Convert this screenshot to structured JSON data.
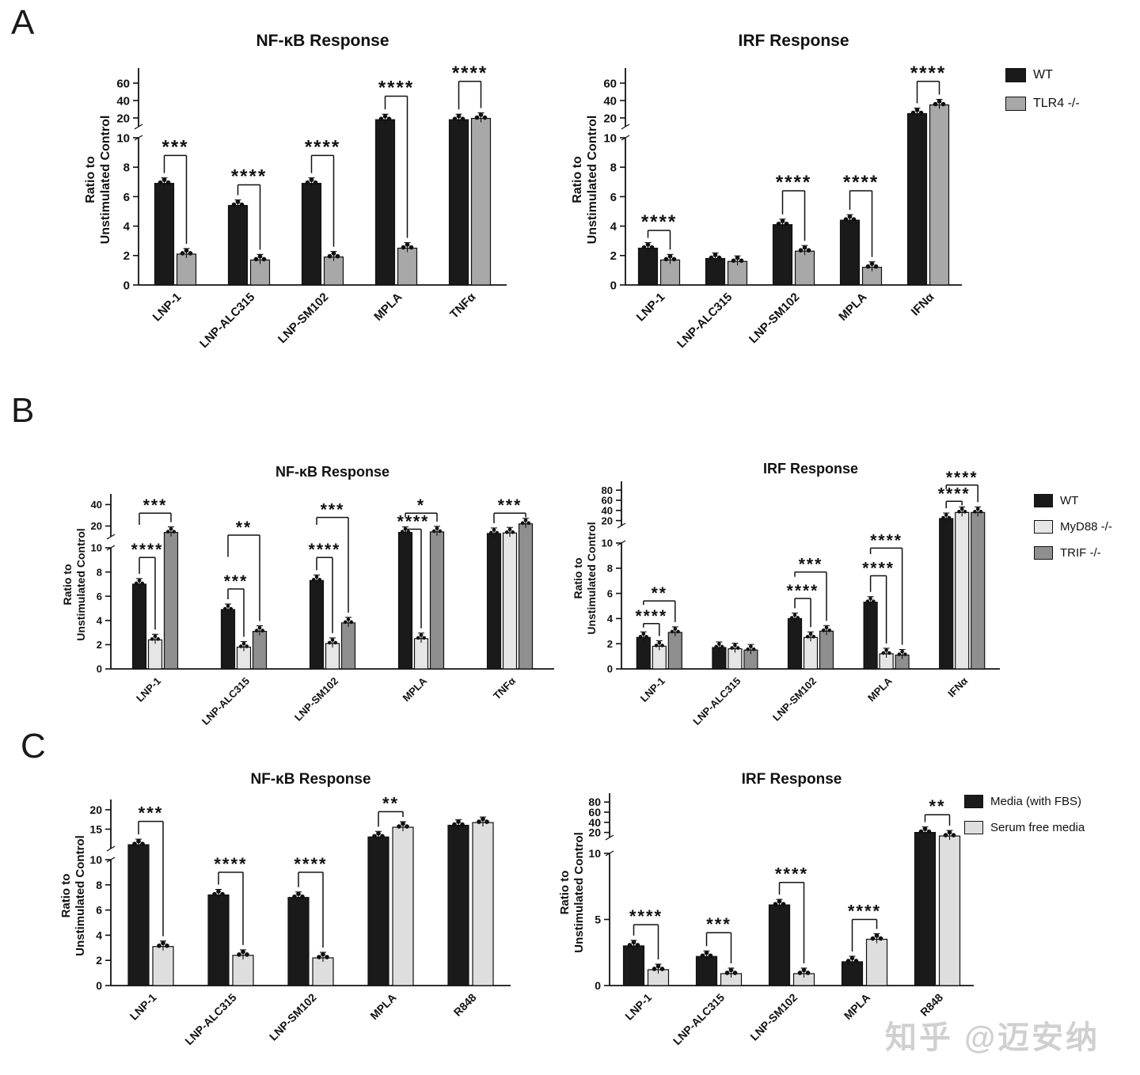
{
  "watermark": "知乎 @迈安纳",
  "panels": [
    {
      "label": "A",
      "legend": [
        {
          "label": "WT",
          "color": "#1a1a1a"
        },
        {
          "label": "TLR4 -/-",
          "color": "#a8a8a8"
        }
      ]
    },
    {
      "label": "B",
      "legend": [
        {
          "label": "WT",
          "color": "#1a1a1a"
        },
        {
          "label": "MyD88 -/-",
          "color": "#e6e6e6"
        },
        {
          "label": "TRIF -/-",
          "color": "#8f8f8f"
        }
      ]
    },
    {
      "label": "C",
      "legend": [
        {
          "label": "Media (with FBS)",
          "color": "#1a1a1a"
        },
        {
          "label": "Serum free media",
          "color": "#dedede"
        }
      ]
    }
  ],
  "chart_data": [
    {
      "panel": "A",
      "type": "bar",
      "title": "NF-κB Response",
      "ylabel": "Ratio to Unstimulated Control",
      "ylabel_lines": [
        "Ratio to",
        "Unstimulated  Control"
      ],
      "categories": [
        "LNP-1",
        "LNP-ALC315",
        "LNP-SM102",
        "MPLA",
        "TNFα"
      ],
      "series": [
        {
          "name": "WT",
          "color": "#1a1a1a",
          "values": [
            6.9,
            5.4,
            6.9,
            18,
            18
          ]
        },
        {
          "name": "TLR4 -/-",
          "color": "#a8a8a8",
          "values": [
            2.1,
            1.7,
            1.9,
            2.5,
            19.5
          ]
        }
      ],
      "axis": {
        "lower_ticks": [
          0,
          2,
          4,
          6,
          8,
          10
        ],
        "lower_max": 10,
        "upper_ticks": [
          20,
          40,
          60
        ],
        "upper_max": 70
      },
      "significance": [
        {
          "cat": 0,
          "s1": 0,
          "s2": 1,
          "label": "***",
          "y": 8.8
        },
        {
          "cat": 1,
          "s1": 0,
          "s2": 1,
          "label": "****",
          "y": 6.8
        },
        {
          "cat": 2,
          "s1": 0,
          "s2": 1,
          "label": "****",
          "y": 8.8
        },
        {
          "cat": 3,
          "s1": 0,
          "s2": 1,
          "label": "****",
          "y": 45
        },
        {
          "cat": 4,
          "s1": 0,
          "s2": 1,
          "label": "****",
          "y": 62
        }
      ]
    },
    {
      "panel": "A",
      "type": "bar",
      "title": "IRF Response",
      "ylabel": "Ratio to Unstimulated Control",
      "ylabel_lines": [
        "Ratio to",
        "Unstimulated  Control"
      ],
      "categories": [
        "LNP-1",
        "LNP-ALC315",
        "LNP-SM102",
        "MPLA",
        "IFNα"
      ],
      "series": [
        {
          "name": "WT",
          "color": "#1a1a1a",
          "values": [
            2.5,
            1.8,
            4.1,
            4.4,
            25
          ]
        },
        {
          "name": "TLR4 -/-",
          "color": "#a8a8a8",
          "values": [
            1.7,
            1.6,
            2.3,
            1.2,
            35
          ]
        }
      ],
      "axis": {
        "lower_ticks": [
          0,
          2,
          4,
          6,
          8,
          10
        ],
        "lower_max": 10,
        "upper_ticks": [
          20,
          40,
          60
        ],
        "upper_max": 70
      },
      "significance": [
        {
          "cat": 0,
          "s1": 0,
          "s2": 1,
          "label": "****",
          "y": 3.7
        },
        {
          "cat": 2,
          "s1": 0,
          "s2": 1,
          "label": "****",
          "y": 6.4
        },
        {
          "cat": 3,
          "s1": 0,
          "s2": 1,
          "label": "****",
          "y": 6.4
        },
        {
          "cat": 4,
          "s1": 0,
          "s2": 1,
          "label": "****",
          "y": 62
        }
      ]
    },
    {
      "panel": "B",
      "type": "bar",
      "title": "NF-κB Response",
      "ylabel": "Ratio to Unstimulated Control",
      "ylabel_lines": [
        "Ratio to",
        "Unstimulated  Control"
      ],
      "categories": [
        "LNP-1",
        "LNP-ALC315",
        "LNP-SM102",
        "MPLA",
        "TNFα"
      ],
      "series": [
        {
          "name": "WT",
          "color": "#1a1a1a",
          "values": [
            7.0,
            4.9,
            7.3,
            14,
            13
          ]
        },
        {
          "name": "MyD88 -/-",
          "color": "#e6e6e6",
          "values": [
            2.4,
            1.8,
            2.1,
            2.5,
            13.5
          ]
        },
        {
          "name": "TRIF -/-",
          "color": "#8f8f8f",
          "values": [
            14,
            3.1,
            3.8,
            14.5,
            22
          ]
        }
      ],
      "axis": {
        "lower_ticks": [
          0,
          2,
          4,
          6,
          8,
          10
        ],
        "lower_max": 10,
        "upper_ticks": [
          20,
          40
        ],
        "upper_max": 44
      },
      "significance": [
        {
          "cat": 0,
          "s1": 0,
          "s2": 1,
          "label": "****",
          "y": 9.2
        },
        {
          "cat": 0,
          "s1": 0,
          "s2": 2,
          "label": "***",
          "y": 32,
          "d1": 11.5
        },
        {
          "cat": 1,
          "s1": 0,
          "s2": 1,
          "label": "***",
          "y": 6.6
        },
        {
          "cat": 1,
          "s1": 0,
          "s2": 2,
          "label": "**",
          "y": 11.5,
          "d1": 8.4
        },
        {
          "cat": 2,
          "s1": 0,
          "s2": 1,
          "label": "****",
          "y": 9.2
        },
        {
          "cat": 2,
          "s1": 0,
          "s2": 2,
          "label": "***",
          "y": 28,
          "d1": 11.5
        },
        {
          "cat": 3,
          "s1": 0,
          "s2": 1,
          "label": "****",
          "y": 17
        },
        {
          "cat": 3,
          "s1": 0,
          "s2": 2,
          "label": "*",
          "y": 32,
          "d1": 20
        },
        {
          "cat": 4,
          "s1": 0,
          "s2": 2,
          "label": "***",
          "y": 32
        }
      ]
    },
    {
      "panel": "B",
      "type": "bar",
      "title": "IRF  Response",
      "ylabel": "Ratio to Unstimulated Control",
      "ylabel_lines": [
        "Ratio to",
        "Unstimulated  Control"
      ],
      "categories": [
        "LNP-1",
        "LNP-ALC315",
        "LNP-SM102",
        "MPLA",
        "IFNα"
      ],
      "series": [
        {
          "name": "WT",
          "color": "#1a1a1a",
          "values": [
            2.5,
            1.7,
            4.0,
            5.3,
            24
          ]
        },
        {
          "name": "MyD88 -/-",
          "color": "#e6e6e6",
          "values": [
            1.8,
            1.6,
            2.5,
            1.2,
            36
          ]
        },
        {
          "name": "TRIF -/-",
          "color": "#8f8f8f",
          "values": [
            2.9,
            1.5,
            3.0,
            1.1,
            36
          ]
        }
      ],
      "axis": {
        "lower_ticks": [
          0,
          2,
          4,
          6,
          8,
          10
        ],
        "lower_max": 10,
        "upper_ticks": [
          20,
          40,
          60,
          80
        ],
        "upper_max": 85
      },
      "significance": [
        {
          "cat": 0,
          "s1": 0,
          "s2": 1,
          "label": "****",
          "y": 3.6
        },
        {
          "cat": 0,
          "s1": 0,
          "s2": 2,
          "label": "**",
          "y": 5.4,
          "d1": 4.4
        },
        {
          "cat": 2,
          "s1": 0,
          "s2": 1,
          "label": "****",
          "y": 5.6
        },
        {
          "cat": 2,
          "s1": 0,
          "s2": 2,
          "label": "***",
          "y": 7.7,
          "d1": 6.5
        },
        {
          "cat": 3,
          "s1": 0,
          "s2": 1,
          "label": "****",
          "y": 7.4
        },
        {
          "cat": 3,
          "s1": 0,
          "s2": 2,
          "label": "****",
          "y": 9.6,
          "d1": 8.3
        },
        {
          "cat": 4,
          "s1": 0,
          "s2": 1,
          "label": "****",
          "y": 58
        },
        {
          "cat": 4,
          "s1": 0,
          "s2": 2,
          "label": "****",
          "y": 90,
          "d1": 80
        }
      ]
    },
    {
      "panel": "C",
      "type": "bar",
      "title": "NF-κB Response",
      "ylabel": "Ratio to Unstimulated Control",
      "ylabel_lines": [
        "Ratio to",
        "Unstimulated  Control"
      ],
      "categories": [
        "LNP-1",
        "LNP-ALC315",
        "LNP-SM102",
        "MPLA",
        "R848"
      ],
      "series": [
        {
          "name": "Media (with FBS)",
          "color": "#1a1a1a",
          "values": [
            11,
            7.2,
            7.0,
            13,
            16
          ]
        },
        {
          "name": "Serum free media",
          "color": "#dedede",
          "values": [
            3.1,
            2.4,
            2.2,
            15.5,
            16.7
          ]
        }
      ],
      "axis": {
        "lower_ticks": [
          0,
          2,
          4,
          6,
          8,
          10
        ],
        "lower_max": 10,
        "upper_ticks": [
          15,
          20
        ],
        "upper_max": 21
      },
      "significance": [
        {
          "cat": 0,
          "s1": 0,
          "s2": 1,
          "label": "***",
          "y": 17
        },
        {
          "cat": 1,
          "s1": 0,
          "s2": 1,
          "label": "****",
          "y": 9.0
        },
        {
          "cat": 2,
          "s1": 0,
          "s2": 1,
          "label": "****",
          "y": 9.0
        },
        {
          "cat": 3,
          "s1": 0,
          "s2": 1,
          "label": "**",
          "y": 19.5
        }
      ]
    },
    {
      "panel": "C",
      "type": "bar",
      "title": "IRF  Response",
      "ylabel": "Ratio to Unstimulated Control",
      "ylabel_lines": [
        "Ratio to",
        "Unstimulated  Control"
      ],
      "categories": [
        "LNP-1",
        "LNP-ALC315",
        "LNP-SM102",
        "MPLA",
        "R848"
      ],
      "series": [
        {
          "name": "Media (with FBS)",
          "color": "#1a1a1a",
          "values": [
            3.0,
            2.2,
            6.1,
            1.8,
            20
          ]
        },
        {
          "name": "Serum free media",
          "color": "#dedede",
          "values": [
            1.2,
            0.9,
            0.9,
            3.5,
            13
          ]
        }
      ],
      "axis": {
        "lower_ticks": [
          0,
          5,
          10
        ],
        "lower_max": 10,
        "upper_ticks": [
          20,
          40,
          60,
          80
        ],
        "upper_max": 85
      },
      "significance": [
        {
          "cat": 0,
          "s1": 0,
          "s2": 1,
          "label": "****",
          "y": 4.6
        },
        {
          "cat": 1,
          "s1": 0,
          "s2": 1,
          "label": "***",
          "y": 4.0
        },
        {
          "cat": 2,
          "s1": 0,
          "s2": 1,
          "label": "****",
          "y": 7.8
        },
        {
          "cat": 3,
          "s1": 0,
          "s2": 1,
          "label": "****",
          "y": 5.0
        },
        {
          "cat": 4,
          "s1": 0,
          "s2": 1,
          "label": "**",
          "y": 55
        }
      ]
    }
  ]
}
